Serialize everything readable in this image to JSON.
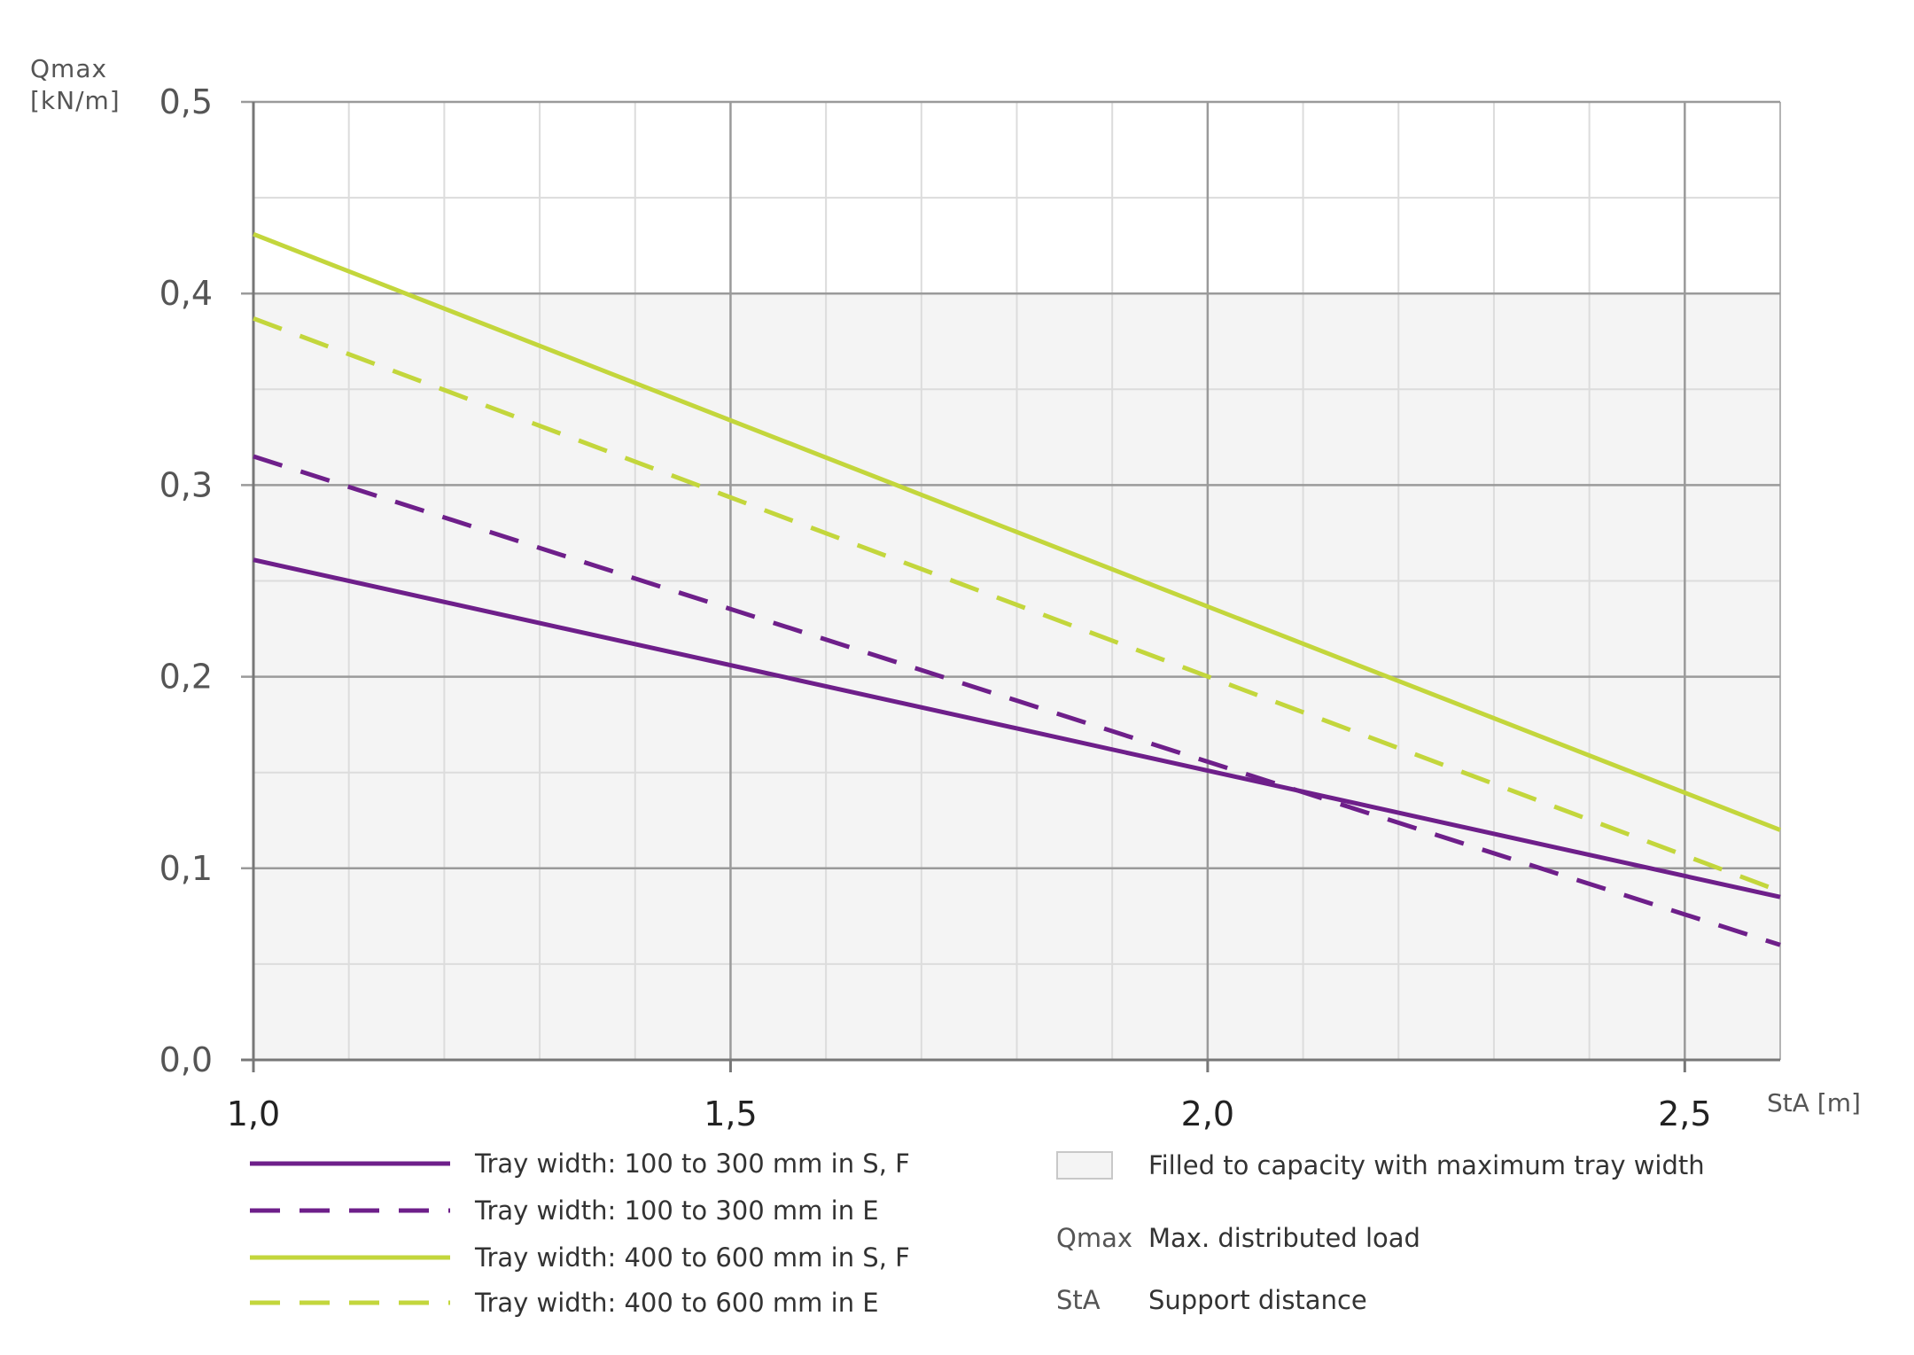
{
  "chart_data": {
    "type": "line",
    "ylabel_line1": "Qmax",
    "ylabel_line2": "[kN/m]",
    "xlabel": "StA [m]",
    "xlim": [
      1.0,
      2.6
    ],
    "ylim": [
      0.0,
      0.5
    ],
    "x_ticks": [
      1.0,
      1.5,
      2.0,
      2.5
    ],
    "x_tick_labels": [
      "1,0",
      "1,5",
      "2,0",
      "2,5"
    ],
    "y_ticks": [
      0.0,
      0.1,
      0.2,
      0.3,
      0.4,
      0.5
    ],
    "y_tick_labels": [
      "0,0",
      "0,1",
      "0,2",
      "0,3",
      "0,4",
      "0,5"
    ],
    "grid": true,
    "shaded_region": {
      "y_max": 0.4,
      "color": "#f4f4f4"
    },
    "series": [
      {
        "name": "Tray width: 100 to 300 mm in S, F",
        "color": "#6e1f8a",
        "dash": "solid",
        "x": [
          1.0,
          2.6
        ],
        "y": [
          0.261,
          0.085
        ]
      },
      {
        "name": "Tray width: 100 to 300 mm in E",
        "color": "#6e1f8a",
        "dash": "dashed",
        "x": [
          1.0,
          2.6
        ],
        "y": [
          0.315,
          0.06
        ]
      },
      {
        "name": "Tray width:  400 to 600 mm in S, F",
        "color": "#c3d63c",
        "dash": "solid",
        "x": [
          1.0,
          2.6
        ],
        "y": [
          0.431,
          0.12
        ]
      },
      {
        "name": "Tray width:  400 to 600 mm in E",
        "color": "#c3d63c",
        "dash": "dashed",
        "x": [
          1.0,
          2.6
        ],
        "y": [
          0.387,
          0.088
        ]
      }
    ]
  },
  "legend_notes": {
    "filled_label": "Filled to capacity with maximum tray width",
    "qmax_abbr": "Qmax",
    "qmax_label": "Max. distributed load",
    "sta_abbr": "StA",
    "sta_label": "Support distance"
  }
}
